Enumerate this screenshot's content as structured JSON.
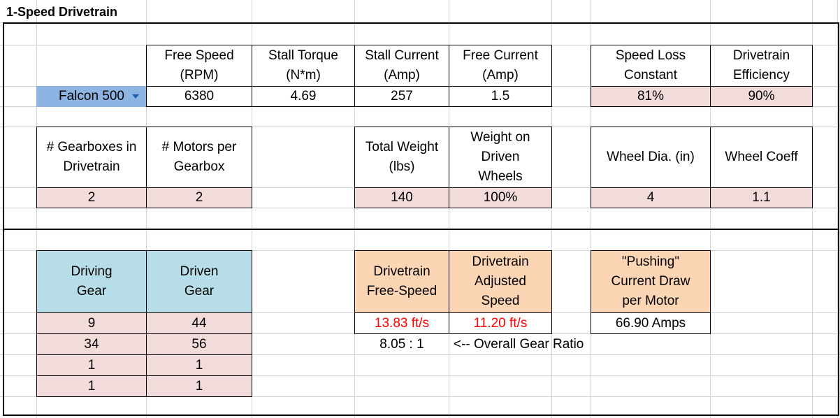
{
  "sheet": {
    "title": "1-Speed Drivetrain"
  },
  "motor": {
    "selected": "Falcon 500",
    "headers": {
      "free_speed": "Free Speed\n(RPM)",
      "stall_torque": "Stall Torque\n(N*m)",
      "stall_current": "Stall Current\n(Amp)",
      "free_current": "Free Current\n(Amp)"
    },
    "values": {
      "free_speed": "6380",
      "stall_torque": "4.69",
      "stall_current": "257",
      "free_current": "1.5"
    }
  },
  "constants": {
    "headers": {
      "speed_loss": "Speed Loss\nConstant",
      "efficiency": "Drivetrain\nEfficiency"
    },
    "values": {
      "speed_loss": "81%",
      "efficiency": "90%"
    }
  },
  "config": {
    "headers": {
      "gearboxes": "# Gearboxes in\nDrivetrain",
      "motors_per": "# Motors per\nGearbox",
      "total_weight": "Total Weight\n(lbs)",
      "weight_driven": "Weight on\nDriven\nWheels",
      "wheel_dia": "Wheel Dia. (in)",
      "wheel_coeff": "Wheel Coeff"
    },
    "values": {
      "gearboxes": "2",
      "motors_per": "2",
      "total_weight": "140",
      "weight_driven": "100%",
      "wheel_dia": "4",
      "wheel_coeff": "1.1"
    }
  },
  "gears": {
    "headers": {
      "driving": "Driving\nGear",
      "driven": "Driven\nGear"
    },
    "rows": [
      {
        "driving": "9",
        "driven": "44"
      },
      {
        "driving": "34",
        "driven": "56"
      },
      {
        "driving": "1",
        "driven": "1"
      },
      {
        "driving": "1",
        "driven": "1"
      }
    ]
  },
  "results": {
    "headers": {
      "free_speed": "Drivetrain\nFree-Speed",
      "adjusted_speed": "Drivetrain\nAdjusted\nSpeed",
      "pushing_current": "\"Pushing\"\nCurrent Draw\nper Motor"
    },
    "values": {
      "free_speed": "13.83 ft/s",
      "adjusted_speed": "11.20 ft/s",
      "pushing_current": "66.90 Amps"
    },
    "gear_ratio": "8.05 : 1",
    "gear_ratio_note": "<-- Overall Gear Ratio"
  },
  "colors": {
    "input_fill": "#f2dcdb",
    "gear_header_fill": "#b7dde8",
    "result_header_fill": "#fcd5b4",
    "selected_cell_fill": "#8db4e2",
    "result_text": "#ff0000",
    "gridline": "#d4d4d4"
  }
}
